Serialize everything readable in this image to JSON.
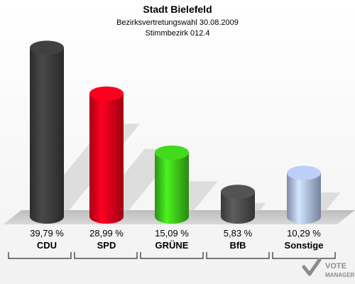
{
  "chart_data": {
    "type": "bar",
    "title": "Stadt Bielefeld",
    "subtitle_lines": [
      "Bezirksvertretungswahl 30.08.2009",
      "Stimmbezirk 012.4"
    ],
    "categories": [
      "CDU",
      "SPD",
      "GRÜNE",
      "BfB",
      "Sonstige"
    ],
    "values": [
      39.79,
      28.99,
      15.09,
      5.83,
      10.29
    ],
    "value_labels": [
      "39,79 %",
      "28,99 %",
      "15,09 %",
      "5,83 %",
      "10,29 %"
    ],
    "colors": [
      "#3a3a3a",
      "#e0001a",
      "#3cc21a",
      "#4a4a4a",
      "#a9b8e0"
    ],
    "unit": "%",
    "xlabel": "",
    "ylabel": "",
    "ylim": [
      0,
      40
    ],
    "grid": false,
    "legend": "none"
  },
  "watermark": {
    "text_top": "VOTE",
    "text_bottom": "MANAGER"
  }
}
